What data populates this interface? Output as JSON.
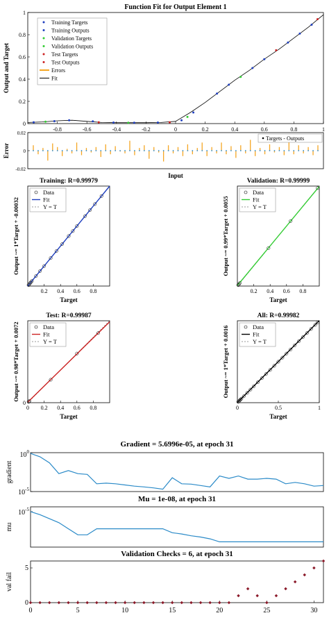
{
  "colors": {
    "blue": "#1f3fbf",
    "green": "#33cc33",
    "orange": "#f5a623",
    "red": "#cc2222",
    "matlab_blue": "#2a8ac8",
    "maroon": "#8b1a2a",
    "black": "#000000",
    "gray": "#777777"
  },
  "chart_data": [
    {
      "id": "fit",
      "type": "scatter",
      "title": "Function Fit for Output Element 1",
      "ylabel": "Output and Target",
      "xlim": [
        -1,
        1
      ],
      "ylim": [
        0,
        1
      ],
      "yticks": [
        0,
        0.2,
        0.4,
        0.6,
        0.8,
        1
      ],
      "ytick_labels": [
        "0",
        "0.2",
        "0.4",
        "0.6",
        "0.8",
        "1"
      ],
      "xticks": [
        -0.8,
        -0.6,
        -0.4,
        -0.2,
        0,
        0.2,
        0.4,
        0.6,
        0.8,
        1
      ],
      "xtick_labels": [
        "-0.8",
        "-0.6",
        "-0.4",
        "-0.2",
        "0",
        "0.2",
        "0.4",
        "0.6",
        "0.8",
        "1"
      ],
      "legend": {
        "placement": "top-left",
        "entries": [
          "Training Targets",
          "Training Outputs",
          "Validation Targets",
          "Validation Outputs",
          "Test Targets",
          "Test Outputs",
          "Errors",
          "Fit"
        ]
      },
      "fit_curve": {
        "x": [
          -1,
          -0.9,
          -0.8,
          -0.7,
          -0.6,
          -0.5,
          -0.4,
          -0.3,
          -0.2,
          -0.1,
          0,
          0.1,
          0.2,
          0.3,
          0.4,
          0.5,
          0.6,
          0.7,
          0.8,
          0.9,
          1
        ],
        "y": [
          0.01,
          0.015,
          0.025,
          0.03,
          0.02,
          0.01,
          0.008,
          0.008,
          0.008,
          0.01,
          0.02,
          0.1,
          0.19,
          0.29,
          0.39,
          0.48,
          0.58,
          0.67,
          0.77,
          0.87,
          0.98
        ]
      },
      "series": [
        {
          "name": "Training Targets",
          "x": [
            -0.96,
            -0.82,
            -0.72,
            -0.56,
            -0.42,
            -0.28,
            -0.12,
            0.04,
            0.12,
            0.28,
            0.36,
            0.52,
            0.6,
            0.76,
            0.84,
            0.92
          ],
          "y": [
            0.012,
            0.022,
            0.03,
            0.02,
            0.009,
            0.008,
            0.009,
            0.03,
            0.1,
            0.27,
            0.35,
            0.5,
            0.58,
            0.73,
            0.81,
            0.89
          ]
        },
        {
          "name": "Validation Targets",
          "x": [
            -0.88,
            -0.32,
            0.08,
            0.44
          ],
          "y": [
            0.017,
            0.008,
            0.06,
            0.42
          ]
        },
        {
          "name": "Test Targets",
          "x": [
            -0.52,
            -0.04,
            0.68,
            0.96
          ],
          "y": [
            0.012,
            0.012,
            0.66,
            0.94
          ]
        }
      ]
    },
    {
      "id": "error",
      "type": "bar",
      "ylabel": "Error",
      "xlabel": "Input",
      "xlim": [
        -1,
        1
      ],
      "ylim": [
        -0.02,
        0.02
      ],
      "yticks": [
        -0.02,
        0,
        0.02
      ],
      "ytick_labels": [
        "-0.02",
        "0",
        "0.02"
      ],
      "legend": {
        "placement": "top-right",
        "entries": [
          "Targets - Outputs"
        ]
      },
      "values": [
        0.006,
        -0.004,
        0.003,
        -0.011,
        0.008,
        0.004,
        -0.006,
        0.002,
        -0.003,
        0.009,
        -0.005,
        0.003,
        -0.002,
        0.004,
        -0.007,
        0.007,
        -0.004,
        0.005,
        -0.001,
        -0.003,
        0.011,
        -0.005,
        0.003,
        0.006,
        -0.009,
        0.004,
        -0.002,
        -0.012,
        0.006,
        -0.003,
        0.004,
        -0.006,
        0.007,
        -0.004,
        0.003,
        0.009,
        -0.006,
        0.004,
        -0.003,
        0.009,
        -0.004,
        0.005,
        -0.008,
        0.006,
        -0.003,
        0.012,
        -0.006,
        0.003,
        -0.004,
        0.007,
        -0.002,
        0.004,
        -0.005,
        0.011,
        -0.004,
        0.006,
        -0.003,
        0.004,
        -0.005,
        0.006
      ]
    },
    {
      "id": "reg_training",
      "type": "scatter",
      "title": "Training: R=0.99979",
      "xlabel": "Target",
      "ylabel": "Output ~= 1*Target + -0.00032",
      "xlim": [
        0,
        1
      ],
      "ylim": [
        0,
        1
      ],
      "xticks": [
        0.2,
        0.4,
        0.6,
        0.8
      ],
      "xtick_labels": [
        "0.2",
        "0.4",
        "0.6",
        "0.8"
      ],
      "yticks": [],
      "ytick_labels": [],
      "legend": {
        "placement": "top-left",
        "entries": [
          "Data",
          "Fit",
          "Y = T"
        ]
      },
      "fit_color": "#1f3fbf",
      "fit": {
        "slope": 1,
        "intercept": -0.00032
      },
      "x": [
        0.01,
        0.02,
        0.03,
        0.04,
        0.05,
        0.1,
        0.15,
        0.2,
        0.28,
        0.35,
        0.42,
        0.5,
        0.55,
        0.6,
        0.7,
        0.76,
        0.82,
        0.9
      ],
      "y": [
        0.01,
        0.02,
        0.03,
        0.04,
        0.05,
        0.1,
        0.15,
        0.2,
        0.28,
        0.35,
        0.42,
        0.5,
        0.55,
        0.6,
        0.7,
        0.76,
        0.82,
        0.9
      ]
    },
    {
      "id": "reg_validation",
      "type": "scatter",
      "title": "Validation: R=0.99999",
      "xlabel": "Target",
      "ylabel": "Output ~= 0.99*Target + 0.0055",
      "xlim": [
        0,
        1
      ],
      "ylim": [
        0,
        1
      ],
      "xticks": [
        0.2,
        0.4,
        0.6,
        0.8
      ],
      "xtick_labels": [
        "0.2",
        "0.4",
        "0.6",
        "0.8"
      ],
      "yticks": [],
      "ytick_labels": [],
      "legend": {
        "placement": "top-left",
        "entries": [
          "Data",
          "Fit",
          "Y = T"
        ]
      },
      "fit_color": "#33cc33",
      "fit": {
        "slope": 0.99,
        "intercept": 0.0055
      },
      "x": [
        0.01,
        0.02,
        0.03,
        0.38,
        0.65,
        0.98
      ],
      "y": [
        0.01,
        0.02,
        0.03,
        0.38,
        0.65,
        0.98
      ]
    },
    {
      "id": "reg_test",
      "type": "scatter",
      "title": "Test: R=0.99987",
      "xlabel": "Target",
      "ylabel": "Output ~= 0.98*Target + 0.0072",
      "xlim": [
        0,
        1
      ],
      "ylim": [
        0,
        1
      ],
      "xticks": [
        0,
        0.2,
        0.4,
        0.6,
        0.8
      ],
      "xtick_labels": [
        "0",
        "0.2",
        "0.4",
        "0.6",
        "0.8"
      ],
      "yticks": [
        0
      ],
      "ytick_labels": [
        "0"
      ],
      "legend": {
        "placement": "top-left",
        "entries": [
          "Data",
          "Fit",
          "Y = T"
        ]
      },
      "fit_color": "#cc2222",
      "fit": {
        "slope": 0.98,
        "intercept": 0.0072
      },
      "x": [
        0.01,
        0.02,
        0.28,
        0.6,
        0.86
      ],
      "y": [
        0.01,
        0.02,
        0.28,
        0.6,
        0.85
      ]
    },
    {
      "id": "reg_all",
      "type": "scatter",
      "title": "All: R=0.99982",
      "xlabel": "Target",
      "ylabel": "Output ~= 1*Target + 0.0016",
      "xlim": [
        0,
        1
      ],
      "ylim": [
        0,
        1
      ],
      "xticks": [
        0,
        0.5,
        1
      ],
      "xtick_labels": [
        "0",
        "0.5",
        "1"
      ],
      "yticks": [],
      "ytick_labels": [],
      "legend": {
        "placement": "top-left",
        "entries": [
          "Data",
          "Fit",
          "Y = T"
        ]
      },
      "fit_color": "#000000",
      "fit": {
        "slope": 1,
        "intercept": 0.0016
      },
      "x": [
        0.01,
        0.02,
        0.03,
        0.04,
        0.05,
        0.08,
        0.12,
        0.16,
        0.2,
        0.25,
        0.3,
        0.35,
        0.4,
        0.45,
        0.5,
        0.55,
        0.6,
        0.65,
        0.7,
        0.75,
        0.8,
        0.85,
        0.9,
        0.95,
        0.98
      ],
      "y": [
        0.01,
        0.02,
        0.03,
        0.04,
        0.05,
        0.08,
        0.12,
        0.16,
        0.2,
        0.25,
        0.3,
        0.35,
        0.4,
        0.45,
        0.5,
        0.55,
        0.6,
        0.65,
        0.7,
        0.75,
        0.8,
        0.85,
        0.9,
        0.95,
        0.98
      ]
    },
    {
      "id": "gradient",
      "type": "line",
      "title": "Gradient = 5.6996e-05, at epoch 31",
      "ylabel": "gradient",
      "scale": "log",
      "ylim": [
        1e-05,
        1
      ],
      "ytick_labels": [
        {
          "base": "10",
          "exp": "0",
          "value": 1
        },
        {
          "base": "10",
          "exp": "-5",
          "value": 1e-05
        }
      ],
      "xlim": [
        0,
        31
      ],
      "x": [
        0,
        1,
        2,
        3,
        4,
        5,
        6,
        7,
        8,
        9,
        10,
        11,
        12,
        13,
        14,
        15,
        16,
        17,
        18,
        19,
        20,
        21,
        22,
        23,
        24,
        25,
        26,
        27,
        28,
        29,
        30,
        31
      ],
      "y": [
        0.8,
        0.3,
        0.05,
        0.002,
        0.005,
        0.002,
        0.0016,
        0.0001,
        0.00012,
        0.0001,
        7e-05,
        5e-05,
        4e-05,
        3e-05,
        2e-05,
        0.0006,
        0.0001,
        9e-05,
        6e-05,
        4e-05,
        0.001,
        0.0005,
        0.001,
        0.0004,
        0.0004,
        0.0005,
        0.0004,
        0.0001,
        0.00015,
        0.0001,
        5e-05,
        6e-05
      ]
    },
    {
      "id": "mu",
      "type": "line",
      "title": "Mu = 1e-08, at epoch 31",
      "ylabel": "mu",
      "scale": "log",
      "ylim": [
        3e-09,
        3e-05
      ],
      "ytick_labels": [
        {
          "base": "10",
          "exp": "-5",
          "value": 1e-05
        }
      ],
      "xlim": [
        0,
        31
      ],
      "x": [
        0,
        1,
        2,
        3,
        4,
        5,
        6,
        7,
        8,
        9,
        10,
        11,
        12,
        13,
        14,
        15,
        16,
        17,
        18,
        19,
        20,
        21,
        22,
        23,
        24,
        25,
        26,
        27,
        28,
        29,
        30,
        31
      ],
      "y": [
        1e-05,
        5e-06,
        2e-06,
        8e-07,
        2e-07,
        5e-08,
        5e-08,
        2e-07,
        2e-07,
        2e-07,
        2e-07,
        2e-07,
        2e-07,
        2e-07,
        2e-07,
        8e-08,
        6e-08,
        4e-08,
        3e-08,
        2e-08,
        1e-08,
        1e-08,
        1e-08,
        1e-08,
        1e-08,
        1e-08,
        1e-08,
        1e-08,
        1e-08,
        1e-08,
        1e-08,
        1e-08
      ]
    },
    {
      "id": "valfail",
      "type": "scatter",
      "title": "Validation Checks = 6, at epoch 31",
      "ylabel": "val fail",
      "ylim": [
        0,
        6
      ],
      "yticks": [
        0,
        5
      ],
      "ytick_labels": [
        "0",
        "5"
      ],
      "xlim": [
        0,
        31
      ],
      "xticks": [
        0,
        5,
        10,
        15,
        20,
        25,
        30
      ],
      "xtick_labels": [
        "0",
        "5",
        "10",
        "15",
        "20",
        "25",
        "30"
      ],
      "x": [
        0,
        1,
        2,
        3,
        4,
        5,
        6,
        7,
        8,
        9,
        10,
        11,
        12,
        13,
        14,
        15,
        16,
        17,
        18,
        19,
        20,
        21,
        22,
        23,
        24,
        25,
        26,
        27,
        28,
        29,
        30,
        31
      ],
      "y": [
        0,
        0,
        0,
        0,
        0,
        0,
        0,
        0,
        0,
        0,
        0,
        0,
        0,
        0,
        0,
        0,
        0,
        0,
        0,
        0,
        0,
        0,
        1,
        2,
        1,
        0,
        1,
        2,
        3,
        4,
        5,
        6
      ]
    }
  ]
}
